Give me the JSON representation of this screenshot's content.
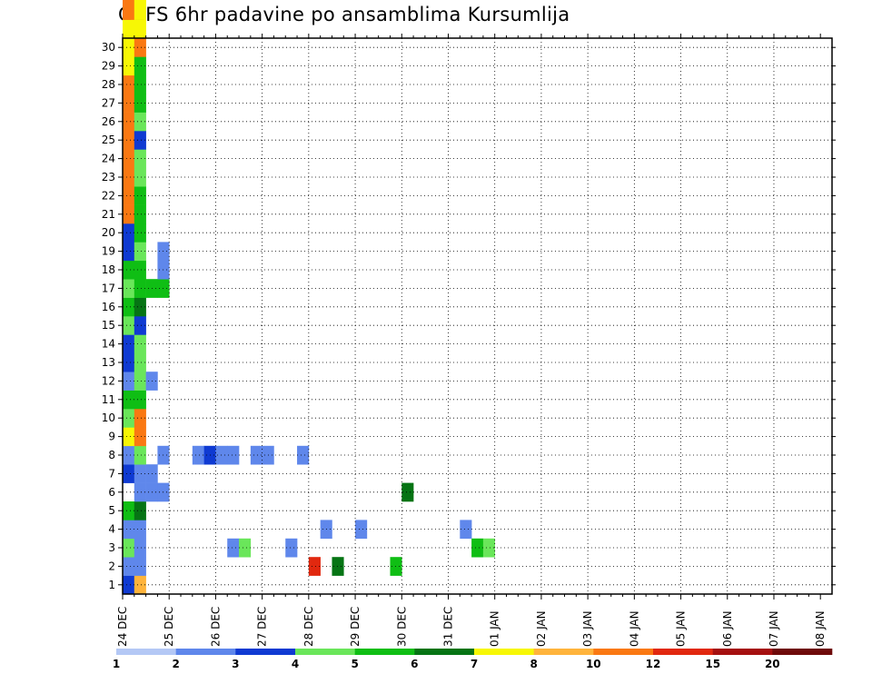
{
  "chart_data": {
    "type": "heatmap",
    "title": "GEFS 6hr padavine po ansamblima Kursumlija",
    "xlabel": "",
    "ylabel": "",
    "x_tick_labels": [
      "24 DEC",
      "25 DEC",
      "26 DEC",
      "27 DEC",
      "28 DEC",
      "29 DEC",
      "30 DEC",
      "31 DEC",
      "01 JAN",
      "02 JAN",
      "03 JAN",
      "04 JAN",
      "05 JAN",
      "06 JAN",
      "07 JAN",
      "08 JAN"
    ],
    "y_tick_labels": [
      "1",
      "2",
      "3",
      "4",
      "5",
      "6",
      "7",
      "8",
      "9",
      "10",
      "11",
      "12",
      "13",
      "14",
      "15",
      "16",
      "17",
      "18",
      "19",
      "20",
      "21",
      "22",
      "23",
      "24",
      "25",
      "26",
      "27",
      "28",
      "29",
      "30"
    ],
    "x_steps_per_day": 4,
    "n_steps": 61,
    "members": 30,
    "grid": true,
    "legend": {
      "position": "bottom",
      "levels": [
        "1",
        "2",
        "3",
        "4",
        "5",
        "6",
        "7",
        "8",
        "10",
        "12",
        "15",
        "20"
      ],
      "colors": [
        "#b4c8f5",
        "#5f87eb",
        "#0f3ad2",
        "#6ae65a",
        "#0fbe14",
        "#067414",
        "#f7f705",
        "#ffb43c",
        "#fa7812",
        "#e1280f",
        "#a51010",
        "#6e0a0a"
      ]
    },
    "cells": [
      [
        0,
        0,
        2
      ],
      [
        1,
        0,
        7
      ],
      [
        0,
        1,
        1
      ],
      [
        1,
        1,
        1
      ],
      [
        16,
        1,
        9
      ],
      [
        18,
        1,
        5
      ],
      [
        23,
        1,
        4
      ],
      [
        0,
        2,
        3
      ],
      [
        1,
        2,
        1
      ],
      [
        9,
        2,
        1
      ],
      [
        10,
        2,
        3
      ],
      [
        14,
        2,
        1
      ],
      [
        30,
        2,
        4
      ],
      [
        31,
        2,
        3
      ],
      [
        0,
        3,
        1
      ],
      [
        1,
        3,
        1
      ],
      [
        17,
        3,
        1
      ],
      [
        20,
        3,
        1
      ],
      [
        29,
        3,
        1
      ],
      [
        0,
        4,
        4
      ],
      [
        1,
        4,
        5
      ],
      [
        1,
        5,
        1
      ],
      [
        2,
        5,
        1
      ],
      [
        3,
        5,
        1
      ],
      [
        24,
        5,
        5
      ],
      [
        0,
        6,
        2
      ],
      [
        1,
        6,
        1
      ],
      [
        2,
        6,
        1
      ],
      [
        0,
        7,
        1
      ],
      [
        1,
        7,
        3
      ],
      [
        3,
        7,
        1
      ],
      [
        6,
        7,
        1
      ],
      [
        7,
        7,
        2
      ],
      [
        8,
        7,
        1
      ],
      [
        9,
        7,
        1
      ],
      [
        11,
        7,
        1
      ],
      [
        12,
        7,
        1
      ],
      [
        15,
        7,
        1
      ],
      [
        0,
        8,
        6
      ],
      [
        1,
        8,
        8
      ],
      [
        0,
        9,
        3
      ],
      [
        1,
        9,
        8
      ],
      [
        0,
        10,
        4
      ],
      [
        1,
        10,
        4
      ],
      [
        0,
        11,
        1
      ],
      [
        1,
        11,
        3
      ],
      [
        2,
        11,
        1
      ],
      [
        0,
        12,
        2
      ],
      [
        1,
        12,
        3
      ],
      [
        0,
        13,
        2
      ],
      [
        1,
        13,
        3
      ],
      [
        0,
        14,
        3
      ],
      [
        1,
        14,
        2
      ],
      [
        0,
        15,
        4
      ],
      [
        1,
        15,
        5
      ],
      [
        0,
        16,
        3
      ],
      [
        1,
        16,
        4
      ],
      [
        2,
        16,
        4
      ],
      [
        3,
        16,
        4
      ],
      [
        0,
        17,
        4
      ],
      [
        1,
        17,
        4
      ],
      [
        3,
        17,
        1
      ],
      [
        0,
        18,
        2
      ],
      [
        1,
        18,
        3
      ],
      [
        3,
        18,
        1
      ],
      [
        0,
        19,
        2
      ],
      [
        1,
        19,
        4
      ],
      [
        0,
        20,
        8
      ],
      [
        1,
        20,
        4
      ],
      [
        0,
        21,
        8
      ],
      [
        1,
        21,
        4
      ],
      [
        0,
        22,
        8
      ],
      [
        1,
        22,
        3
      ],
      [
        0,
        23,
        8
      ],
      [
        1,
        23,
        3
      ],
      [
        0,
        24,
        8
      ],
      [
        1,
        24,
        2
      ],
      [
        0,
        25,
        8
      ],
      [
        1,
        25,
        3
      ],
      [
        0,
        26,
        8
      ],
      [
        1,
        26,
        4
      ],
      [
        0,
        27,
        8
      ],
      [
        1,
        27,
        4
      ],
      [
        0,
        28,
        6
      ],
      [
        1,
        28,
        4
      ],
      [
        0,
        29,
        6
      ],
      [
        1,
        29,
        8
      ],
      [
        0,
        30,
        6
      ],
      [
        1,
        30,
        6
      ],
      [
        0,
        31,
        8
      ],
      [
        1,
        31,
        6
      ],
      [
        0,
        32,
        8
      ],
      [
        1,
        32,
        6
      ],
      [
        0,
        33,
        8
      ],
      [
        1,
        33,
        8
      ],
      [
        0,
        34,
        7
      ],
      [
        1,
        34,
        9
      ],
      [
        0,
        35,
        6
      ],
      [
        1,
        35,
        9
      ],
      [
        0,
        36,
        6
      ],
      [
        1,
        36,
        5
      ],
      [
        0,
        37,
        6
      ],
      [
        1,
        37,
        4
      ],
      [
        0,
        38,
        5
      ],
      [
        1,
        38,
        8
      ],
      [
        0,
        39,
        7
      ],
      [
        1,
        39,
        8
      ],
      [
        0,
        40,
        4
      ],
      [
        1,
        40,
        1
      ],
      [
        0,
        41,
        3
      ],
      [
        1,
        41,
        1
      ],
      [
        0,
        42,
        3
      ],
      [
        1,
        42,
        1
      ],
      [
        0,
        43,
        2
      ],
      [
        1,
        43,
        9
      ],
      [
        0,
        44,
        7
      ],
      [
        1,
        44,
        1
      ],
      [
        0,
        45,
        4
      ],
      [
        1,
        45,
        8
      ],
      [
        0,
        46,
        8
      ],
      [
        1,
        46,
        8
      ],
      [
        0,
        47,
        6
      ],
      [
        1,
        47,
        8
      ],
      [
        0,
        48,
        6
      ],
      [
        1,
        48,
        2
      ],
      [
        0,
        49,
        4
      ],
      [
        1,
        49,
        4
      ],
      [
        0,
        50,
        2
      ],
      [
        1,
        50,
        4
      ],
      [
        0,
        51,
        7
      ],
      [
        1,
        51,
        9
      ],
      [
        0,
        52,
        7
      ],
      [
        1,
        52,
        4
      ],
      [
        0,
        53,
        6
      ],
      [
        1,
        53,
        3
      ],
      [
        0,
        54,
        4
      ],
      [
        1,
        54,
        5
      ],
      [
        0,
        55,
        8
      ],
      [
        1,
        55,
        8
      ],
      [
        0,
        56,
        3
      ],
      [
        1,
        56,
        11
      ],
      [
        0,
        57,
        3
      ],
      [
        1,
        57,
        8
      ],
      [
        0,
        58,
        9
      ],
      [
        1,
        58,
        2
      ],
      [
        0,
        59,
        2
      ],
      [
        1,
        59,
        1
      ],
      [
        0,
        60,
        2
      ],
      [
        1,
        60,
        3
      ]
    ]
  }
}
